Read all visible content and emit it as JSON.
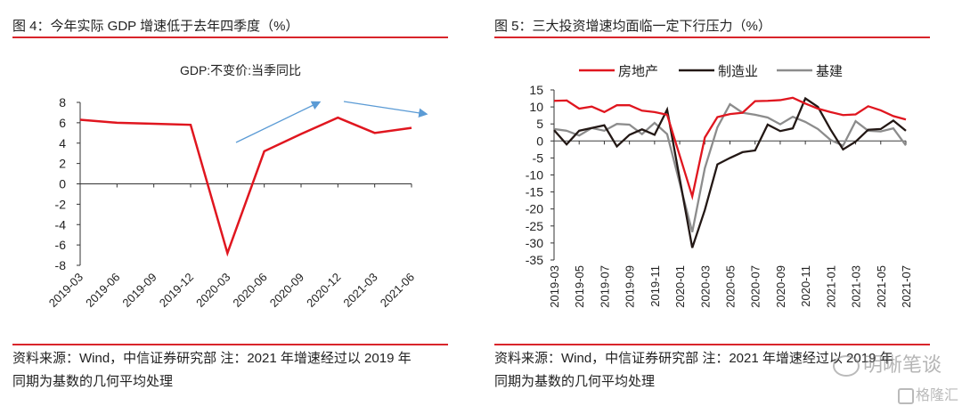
{
  "left": {
    "figure_title": "图 4：今年实际 GDP 增速低于去年四季度（%）",
    "source_line1": "资料来源：Wind，中信证券研究部 注：2021 年增速经过以 2019 年",
    "source_line2": "同期为基数的几何平均处理"
  },
  "right": {
    "figure_title": "图 5：三大投资增速均面临一定下行压力（%）",
    "source_line1": "资料来源：Wind，中信证券研究部 注：2021 年增速经过以 2019 年",
    "source_line2": "同期为基数的几何平均处理"
  },
  "watermark": {
    "text": "明晰笔谈",
    "brand": "格隆汇"
  },
  "colors": {
    "accent_rule": "#d9252b",
    "gdp": "#e0161f",
    "real_estate": "#e0161f",
    "manufacturing": "#231815",
    "infrastructure": "#8c8c8c",
    "trend_arrow": "#5b9bd5"
  },
  "chart_data": [
    {
      "type": "line",
      "title": "GDP:不变价:当季同比",
      "xlabel": "",
      "ylabel": "",
      "ylim": [
        -8,
        8
      ],
      "yticks": [
        8,
        6,
        4,
        2,
        0,
        -2,
        -4,
        -6,
        -8
      ],
      "categories": [
        "2019-03",
        "2019-06",
        "2019-09",
        "2019-12",
        "2020-03",
        "2020-06",
        "2020-09",
        "2020-12",
        "2021-03",
        "2021-06"
      ],
      "series": [
        {
          "name": "GDP:不变价:当季同比",
          "values": [
            6.3,
            6.0,
            5.9,
            5.8,
            -6.8,
            3.2,
            4.9,
            6.5,
            5.0,
            5.5
          ]
        }
      ],
      "annotations": [
        {
          "type": "arrow",
          "direction": "up",
          "from": {
            "x": "2020-03",
            "y": 4.0
          },
          "to": {
            "x": "2020-12",
            "y": 8.0
          }
        },
        {
          "type": "arrow",
          "direction": "down",
          "from": {
            "x": "2021-03",
            "y": 8.0
          },
          "to": {
            "x": "2021-06+",
            "y": 6.8
          }
        }
      ],
      "grid": false,
      "legend": "none"
    },
    {
      "type": "line",
      "title": "",
      "xlabel": "",
      "ylabel": "",
      "ylim": [
        -35,
        15
      ],
      "yticks": [
        15,
        10,
        5,
        0,
        -5,
        -10,
        -15,
        -20,
        -25,
        -30,
        -35
      ],
      "categories": [
        "2019-03",
        "2019-04",
        "2019-05",
        "2019-06",
        "2019-07",
        "2019-08",
        "2019-09",
        "2019-10",
        "2019-11",
        "2019-12",
        "2020-01",
        "2020-02",
        "2020-03",
        "2020-04",
        "2020-05",
        "2020-06",
        "2020-07",
        "2020-08",
        "2020-09",
        "2020-10",
        "2020-11",
        "2020-12",
        "2021-01",
        "2021-02",
        "2021-03",
        "2021-04",
        "2021-05",
        "2021-06",
        "2021-07"
      ],
      "tick_labels": [
        "2019-03",
        "2019-05",
        "2019-07",
        "2019-09",
        "2019-11",
        "2020-01",
        "2020-03",
        "2020-05",
        "2020-07",
        "2020-09",
        "2020-11",
        "2021-01",
        "2021-03",
        "2021-05",
        "2021-07"
      ],
      "series": [
        {
          "name": "房地产",
          "values": [
            11.8,
            11.9,
            9.5,
            10.1,
            8.5,
            10.5,
            10.5,
            8.9,
            8.5,
            7.7,
            null,
            -16.3,
            1.0,
            7.0,
            7.9,
            8.3,
            11.7,
            11.8,
            12.0,
            12.7,
            11.0,
            9.5,
            8.5,
            7.6,
            7.8,
            10.2,
            9.0,
            7.3,
            6.3
          ]
        },
        {
          "name": "制造业",
          "values": [
            3.2,
            -1.0,
            3.0,
            3.8,
            4.6,
            -1.6,
            1.8,
            3.4,
            1.8,
            9.2,
            null,
            -31.4,
            -20.3,
            -6.9,
            -5.0,
            -3.3,
            -2.8,
            4.8,
            2.9,
            3.7,
            12.5,
            10.0,
            3.4,
            -2.5,
            -0.2,
            3.3,
            3.5,
            6.0,
            3.0
          ]
        },
        {
          "name": "基建",
          "values": [
            3.5,
            3.0,
            1.6,
            3.8,
            3.0,
            5.0,
            4.8,
            2.0,
            5.3,
            2.0,
            null,
            -26.8,
            -8.0,
            4.0,
            10.8,
            8.3,
            7.7,
            6.9,
            4.9,
            7.1,
            5.6,
            3.5,
            0.3,
            -1.4,
            5.8,
            3.0,
            2.8,
            3.7,
            -1.3
          ]
        }
      ],
      "grid": false,
      "legend": "top"
    }
  ]
}
